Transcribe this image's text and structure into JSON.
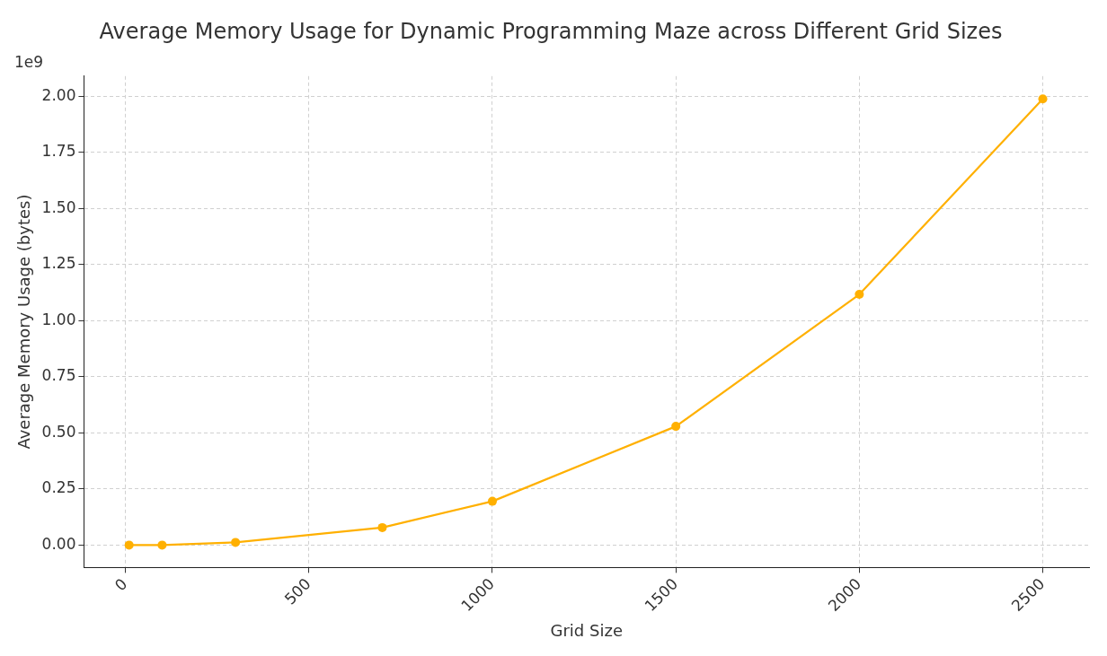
{
  "chart_data": {
    "type": "line",
    "title": "Average Memory Usage for Dynamic Programming Maze across Different Grid Sizes",
    "xlabel": "Grid Size",
    "ylabel": "Average Memory Usage (bytes)",
    "x": [
      10,
      100,
      300,
      700,
      1000,
      1500,
      2000,
      2500
    ],
    "series": [
      {
        "color": "#ffb000",
        "values": [
          0,
          0,
          0.012,
          0.078,
          0.195,
          0.529,
          1.117,
          1.988
        ]
      }
    ],
    "xlim": [
      -113,
      2626
    ],
    "xticks": [
      0,
      500,
      1000,
      1500,
      2000,
      2500
    ],
    "ylim": [
      -0.1,
      2.09
    ],
    "yticks": [
      {
        "value": 0,
        "label": "0.00"
      },
      0.25,
      {
        "value": 0.5,
        "label": "0.50"
      },
      0.75,
      {
        "value": 1,
        "label": "1.00"
      },
      1.25,
      {
        "value": 1.5,
        "label": "1.50"
      },
      1.75,
      {
        "value": 2,
        "label": "2.00"
      }
    ],
    "annotations": [
      "1e9"
    ],
    "grid": true,
    "legend": false,
    "marker": "circle",
    "line_style": "solid"
  }
}
